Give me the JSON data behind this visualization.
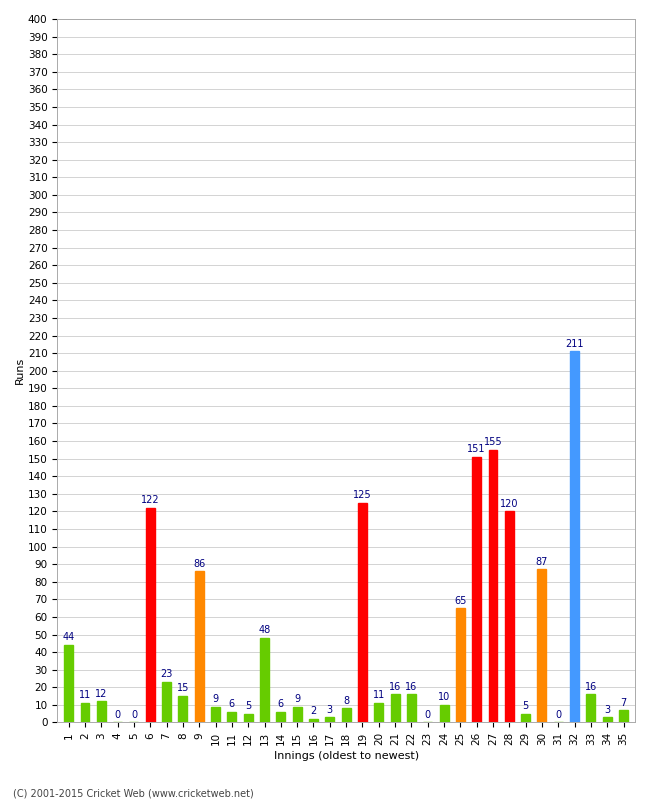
{
  "title": "",
  "xlabel": "Innings (oldest to newest)",
  "ylabel": "Runs",
  "footer": "(C) 2001-2015 Cricket Web (www.cricketweb.net)",
  "ylim": [
    0,
    400
  ],
  "innings": [
    1,
    2,
    3,
    4,
    5,
    6,
    7,
    8,
    9,
    10,
    11,
    12,
    13,
    14,
    15,
    16,
    17,
    18,
    19,
    20,
    21,
    22,
    23,
    24,
    25,
    26,
    27,
    28,
    29,
    30,
    31,
    32,
    33,
    34,
    35
  ],
  "values": [
    44,
    11,
    12,
    0,
    0,
    122,
    23,
    15,
    86,
    9,
    6,
    5,
    48,
    6,
    9,
    2,
    3,
    8,
    125,
    11,
    16,
    16,
    0,
    10,
    65,
    151,
    155,
    120,
    5,
    87,
    0,
    211,
    16,
    3,
    7
  ],
  "colors": [
    "#66cc00",
    "#66cc00",
    "#66cc00",
    "#66cc00",
    "#66cc00",
    "#ff0000",
    "#66cc00",
    "#66cc00",
    "#ff8800",
    "#66cc00",
    "#66cc00",
    "#66cc00",
    "#66cc00",
    "#66cc00",
    "#66cc00",
    "#66cc00",
    "#66cc00",
    "#66cc00",
    "#ff0000",
    "#66cc00",
    "#66cc00",
    "#66cc00",
    "#66cc00",
    "#66cc00",
    "#ff8800",
    "#ff0000",
    "#ff0000",
    "#ff0000",
    "#66cc00",
    "#ff8800",
    "#66cc00",
    "#4499ff",
    "#66cc00",
    "#66cc00",
    "#66cc00"
  ],
  "bg_color": "#ffffff",
  "plot_bg_color": "#ffffff",
  "grid_color": "#cccccc",
  "bar_width": 0.55,
  "label_fontsize": 8,
  "tick_fontsize": 7.5,
  "value_label_color": "#000080",
  "value_label_fontsize": 7
}
